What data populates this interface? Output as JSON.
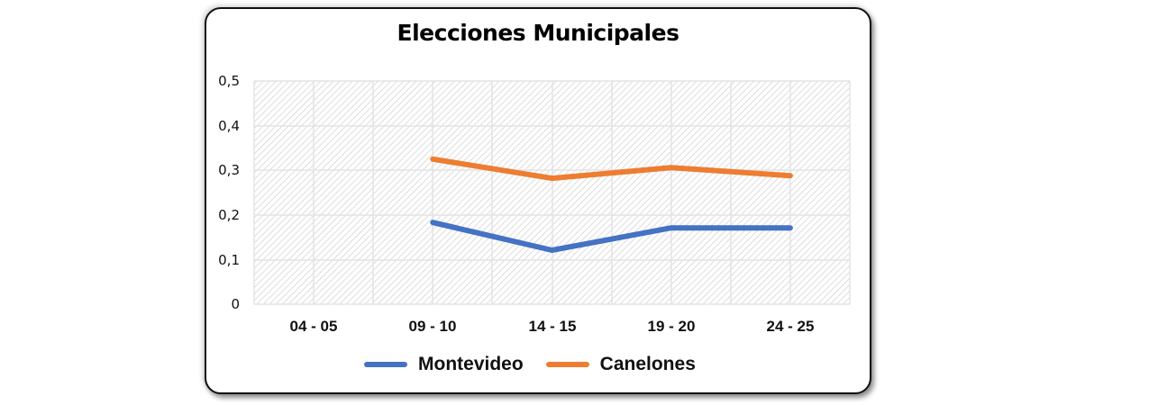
{
  "chart_data": {
    "type": "line",
    "title": "Elecciones Municipales",
    "xlabel": "",
    "ylabel": "",
    "categories": [
      "04 - 05",
      "09 - 10",
      "14 - 15",
      "19 - 20",
      "24 - 25"
    ],
    "series": [
      {
        "name": "Montevideo",
        "color": "#4472C4",
        "values": [
          null,
          0.183,
          0.121,
          0.171,
          0.171
        ]
      },
      {
        "name": "Canelones",
        "color": "#ED7D31",
        "values": [
          null,
          0.325,
          0.282,
          0.306,
          0.288
        ]
      }
    ],
    "ylim": [
      0,
      0.5
    ],
    "yticks": [
      "0",
      "0,1",
      "0,2",
      "0,3",
      "0,4",
      "0,5"
    ],
    "grid": true,
    "legend_position": "bottom",
    "plot_background": "diagonal-hatch"
  },
  "chart": {
    "title": "Elecciones Municipales",
    "yticks": [
      "0,5",
      "0,4",
      "0,3",
      "0,2",
      "0,1",
      "0"
    ],
    "xticks": [
      "04 - 05",
      "09 - 10",
      "14 - 15",
      "19 - 20",
      "24 - 25"
    ],
    "legend": [
      {
        "label": "Montevideo",
        "color": "#4472C4"
      },
      {
        "label": "Canelones",
        "color": "#ED7D31"
      }
    ]
  }
}
